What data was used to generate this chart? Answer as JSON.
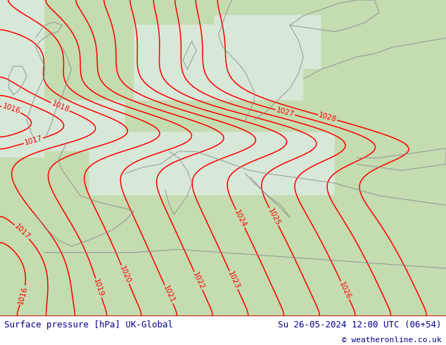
{
  "title_left": "Surface pressure [hPa] UK-Global",
  "title_right": "Su 26-05-2024 12:00 UTC (06+54)",
  "copyright": "© weatheronline.co.uk",
  "bg_land_color": "#b8d4a8",
  "bg_sea_color": "#d8e8d8",
  "contour_color": "#ff0000",
  "contour_linewidth": 1.1,
  "coast_color": "#888888",
  "coast_lw": 0.7,
  "label_color": "#ff0000",
  "label_fontsize": 7.5,
  "footer_bg": "#ffffff",
  "footer_fontsize": 9,
  "footer_color": "#00008b",
  "copyright_fontsize": 8,
  "figsize": [
    6.34,
    4.9
  ],
  "dpi": 100,
  "pressure_levels": [
    1016,
    1017,
    1018,
    1019,
    1020,
    1021,
    1022,
    1023,
    1024,
    1025,
    1026,
    1027,
    1028
  ]
}
